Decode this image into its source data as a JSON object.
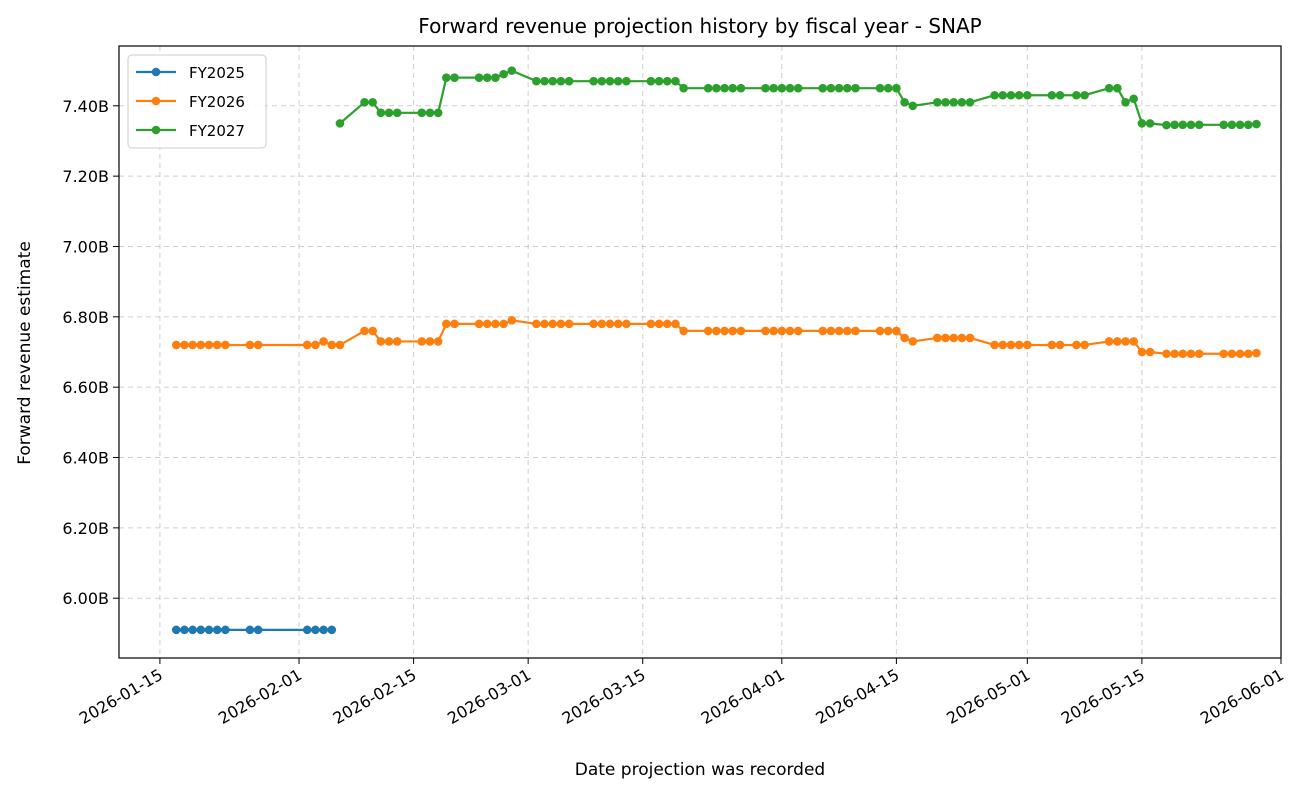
{
  "chart_data": {
    "type": "line",
    "title": "Forward revenue projection history by fiscal year - SNAP",
    "xlabel": "Date projection was recorded",
    "ylabel": "Forward revenue estimate",
    "x_axis_type": "date",
    "xlim": [
      "2026-01-10",
      "2026-06-01"
    ],
    "ylim": [
      5.83,
      7.57
    ],
    "x_ticks": [
      {
        "date": "2026-01-15",
        "label": "2026-01-15"
      },
      {
        "date": "2026-02-01",
        "label": "2026-02-01"
      },
      {
        "date": "2026-02-15",
        "label": "2026-02-15"
      },
      {
        "date": "2026-03-01",
        "label": "2026-03-01"
      },
      {
        "date": "2026-03-15",
        "label": "2026-03-15"
      },
      {
        "date": "2026-04-01",
        "label": "2026-04-01"
      },
      {
        "date": "2026-04-15",
        "label": "2026-04-15"
      },
      {
        "date": "2026-05-01",
        "label": "2026-05-01"
      },
      {
        "date": "2026-05-15",
        "label": "2026-05-15"
      },
      {
        "date": "2026-06-01",
        "label": "2026-06-01"
      }
    ],
    "y_ticks": [
      {
        "value": 6.0,
        "label": "6.00B"
      },
      {
        "value": 6.2,
        "label": "6.20B"
      },
      {
        "value": 6.4,
        "label": "6.40B"
      },
      {
        "value": 6.6,
        "label": "6.60B"
      },
      {
        "value": 6.8,
        "label": "6.80B"
      },
      {
        "value": 7.0,
        "label": "7.00B"
      },
      {
        "value": 7.2,
        "label": "7.20B"
      },
      {
        "value": 7.4,
        "label": "7.40B"
      }
    ],
    "grid": true,
    "legend_position": "top-left",
    "series": [
      {
        "name": "FY2025",
        "color": "#1f77b4",
        "points": [
          [
            "2026-01-17",
            5.91
          ],
          [
            "2026-01-18",
            5.91
          ],
          [
            "2026-01-19",
            5.91
          ],
          [
            "2026-01-20",
            5.91
          ],
          [
            "2026-01-21",
            5.91
          ],
          [
            "2026-01-22",
            5.91
          ],
          [
            "2026-01-23",
            5.91
          ],
          [
            "2026-01-26",
            5.91
          ],
          [
            "2026-01-27",
            5.91
          ],
          [
            "2026-02-02",
            5.91
          ],
          [
            "2026-02-03",
            5.91
          ],
          [
            "2026-02-04",
            5.91
          ],
          [
            "2026-02-05",
            5.91
          ]
        ]
      },
      {
        "name": "FY2026",
        "color": "#ff7f0e",
        "points": [
          [
            "2026-01-17",
            6.72
          ],
          [
            "2026-01-18",
            6.72
          ],
          [
            "2026-01-19",
            6.72
          ],
          [
            "2026-01-20",
            6.72
          ],
          [
            "2026-01-21",
            6.72
          ],
          [
            "2026-01-22",
            6.72
          ],
          [
            "2026-01-23",
            6.72
          ],
          [
            "2026-01-26",
            6.72
          ],
          [
            "2026-01-27",
            6.72
          ],
          [
            "2026-02-02",
            6.72
          ],
          [
            "2026-02-03",
            6.72
          ],
          [
            "2026-02-04",
            6.73
          ],
          [
            "2026-02-05",
            6.72
          ],
          [
            "2026-02-06",
            6.72
          ],
          [
            "2026-02-09",
            6.76
          ],
          [
            "2026-02-10",
            6.76
          ],
          [
            "2026-02-11",
            6.73
          ],
          [
            "2026-02-12",
            6.73
          ],
          [
            "2026-02-13",
            6.73
          ],
          [
            "2026-02-16",
            6.73
          ],
          [
            "2026-02-17",
            6.73
          ],
          [
            "2026-02-18",
            6.73
          ],
          [
            "2026-02-19",
            6.78
          ],
          [
            "2026-02-20",
            6.78
          ],
          [
            "2026-02-23",
            6.78
          ],
          [
            "2026-02-24",
            6.78
          ],
          [
            "2026-02-25",
            6.78
          ],
          [
            "2026-02-26",
            6.78
          ],
          [
            "2026-02-27",
            6.79
          ],
          [
            "2026-03-02",
            6.78
          ],
          [
            "2026-03-03",
            6.78
          ],
          [
            "2026-03-04",
            6.78
          ],
          [
            "2026-03-05",
            6.78
          ],
          [
            "2026-03-06",
            6.78
          ],
          [
            "2026-03-09",
            6.78
          ],
          [
            "2026-03-10",
            6.78
          ],
          [
            "2026-03-11",
            6.78
          ],
          [
            "2026-03-12",
            6.78
          ],
          [
            "2026-03-13",
            6.78
          ],
          [
            "2026-03-16",
            6.78
          ],
          [
            "2026-03-17",
            6.78
          ],
          [
            "2026-03-18",
            6.78
          ],
          [
            "2026-03-19",
            6.78
          ],
          [
            "2026-03-20",
            6.76
          ],
          [
            "2026-03-23",
            6.76
          ],
          [
            "2026-03-24",
            6.76
          ],
          [
            "2026-03-25",
            6.76
          ],
          [
            "2026-03-26",
            6.76
          ],
          [
            "2026-03-27",
            6.76
          ],
          [
            "2026-03-30",
            6.76
          ],
          [
            "2026-03-31",
            6.76
          ],
          [
            "2026-04-01",
            6.76
          ],
          [
            "2026-04-02",
            6.76
          ],
          [
            "2026-04-03",
            6.76
          ],
          [
            "2026-04-06",
            6.76
          ],
          [
            "2026-04-07",
            6.76
          ],
          [
            "2026-04-08",
            6.76
          ],
          [
            "2026-04-09",
            6.76
          ],
          [
            "2026-04-10",
            6.76
          ],
          [
            "2026-04-13",
            6.76
          ],
          [
            "2026-04-14",
            6.76
          ],
          [
            "2026-04-15",
            6.76
          ],
          [
            "2026-04-16",
            6.74
          ],
          [
            "2026-04-17",
            6.73
          ],
          [
            "2026-04-20",
            6.74
          ],
          [
            "2026-04-21",
            6.74
          ],
          [
            "2026-04-22",
            6.74
          ],
          [
            "2026-04-23",
            6.74
          ],
          [
            "2026-04-24",
            6.74
          ],
          [
            "2026-04-27",
            6.72
          ],
          [
            "2026-04-28",
            6.72
          ],
          [
            "2026-04-29",
            6.72
          ],
          [
            "2026-04-30",
            6.72
          ],
          [
            "2026-05-01",
            6.72
          ],
          [
            "2026-05-04",
            6.72
          ],
          [
            "2026-05-05",
            6.72
          ],
          [
            "2026-05-07",
            6.72
          ],
          [
            "2026-05-08",
            6.72
          ],
          [
            "2026-05-11",
            6.73
          ],
          [
            "2026-05-12",
            6.73
          ],
          [
            "2026-05-13",
            6.73
          ],
          [
            "2026-05-14",
            6.73
          ],
          [
            "2026-05-15",
            6.7
          ],
          [
            "2026-05-16",
            6.7
          ],
          [
            "2026-05-18",
            6.695
          ],
          [
            "2026-05-19",
            6.695
          ],
          [
            "2026-05-20",
            6.695
          ],
          [
            "2026-05-21",
            6.695
          ],
          [
            "2026-05-22",
            6.695
          ],
          [
            "2026-05-25",
            6.695
          ],
          [
            "2026-05-26",
            6.695
          ],
          [
            "2026-05-27",
            6.695
          ],
          [
            "2026-05-28",
            6.695
          ],
          [
            "2026-05-29",
            6.697
          ]
        ]
      },
      {
        "name": "FY2027",
        "color": "#2ca02c",
        "points": [
          [
            "2026-02-06",
            7.35
          ],
          [
            "2026-02-09",
            7.41
          ],
          [
            "2026-02-10",
            7.41
          ],
          [
            "2026-02-11",
            7.38
          ],
          [
            "2026-02-12",
            7.38
          ],
          [
            "2026-02-13",
            7.38
          ],
          [
            "2026-02-16",
            7.38
          ],
          [
            "2026-02-17",
            7.38
          ],
          [
            "2026-02-18",
            7.38
          ],
          [
            "2026-02-19",
            7.48
          ],
          [
            "2026-02-20",
            7.48
          ],
          [
            "2026-02-23",
            7.48
          ],
          [
            "2026-02-24",
            7.48
          ],
          [
            "2026-02-25",
            7.48
          ],
          [
            "2026-02-26",
            7.49
          ],
          [
            "2026-02-27",
            7.5
          ],
          [
            "2026-03-02",
            7.47
          ],
          [
            "2026-03-03",
            7.47
          ],
          [
            "2026-03-04",
            7.47
          ],
          [
            "2026-03-05",
            7.47
          ],
          [
            "2026-03-06",
            7.47
          ],
          [
            "2026-03-09",
            7.47
          ],
          [
            "2026-03-10",
            7.47
          ],
          [
            "2026-03-11",
            7.47
          ],
          [
            "2026-03-12",
            7.47
          ],
          [
            "2026-03-13",
            7.47
          ],
          [
            "2026-03-16",
            7.47
          ],
          [
            "2026-03-17",
            7.47
          ],
          [
            "2026-03-18",
            7.47
          ],
          [
            "2026-03-19",
            7.47
          ],
          [
            "2026-03-20",
            7.45
          ],
          [
            "2026-03-23",
            7.45
          ],
          [
            "2026-03-24",
            7.45
          ],
          [
            "2026-03-25",
            7.45
          ],
          [
            "2026-03-26",
            7.45
          ],
          [
            "2026-03-27",
            7.45
          ],
          [
            "2026-03-30",
            7.45
          ],
          [
            "2026-03-31",
            7.45
          ],
          [
            "2026-04-01",
            7.45
          ],
          [
            "2026-04-02",
            7.45
          ],
          [
            "2026-04-03",
            7.45
          ],
          [
            "2026-04-06",
            7.45
          ],
          [
            "2026-04-07",
            7.45
          ],
          [
            "2026-04-08",
            7.45
          ],
          [
            "2026-04-09",
            7.45
          ],
          [
            "2026-04-10",
            7.45
          ],
          [
            "2026-04-13",
            7.45
          ],
          [
            "2026-04-14",
            7.45
          ],
          [
            "2026-04-15",
            7.45
          ],
          [
            "2026-04-16",
            7.41
          ],
          [
            "2026-04-17",
            7.4
          ],
          [
            "2026-04-20",
            7.41
          ],
          [
            "2026-04-21",
            7.41
          ],
          [
            "2026-04-22",
            7.41
          ],
          [
            "2026-04-23",
            7.41
          ],
          [
            "2026-04-24",
            7.41
          ],
          [
            "2026-04-27",
            7.43
          ],
          [
            "2026-04-28",
            7.43
          ],
          [
            "2026-04-29",
            7.43
          ],
          [
            "2026-04-30",
            7.43
          ],
          [
            "2026-05-01",
            7.43
          ],
          [
            "2026-05-04",
            7.43
          ],
          [
            "2026-05-05",
            7.43
          ],
          [
            "2026-05-07",
            7.43
          ],
          [
            "2026-05-08",
            7.43
          ],
          [
            "2026-05-11",
            7.45
          ],
          [
            "2026-05-12",
            7.45
          ],
          [
            "2026-05-13",
            7.41
          ],
          [
            "2026-05-14",
            7.42
          ],
          [
            "2026-05-15",
            7.35
          ],
          [
            "2026-05-16",
            7.35
          ],
          [
            "2026-05-18",
            7.345
          ],
          [
            "2026-05-19",
            7.346
          ],
          [
            "2026-05-20",
            7.346
          ],
          [
            "2026-05-21",
            7.346
          ],
          [
            "2026-05-22",
            7.346
          ],
          [
            "2026-05-25",
            7.346
          ],
          [
            "2026-05-26",
            7.346
          ],
          [
            "2026-05-27",
            7.346
          ],
          [
            "2026-05-28",
            7.346
          ],
          [
            "2026-05-29",
            7.348
          ]
        ]
      }
    ]
  }
}
